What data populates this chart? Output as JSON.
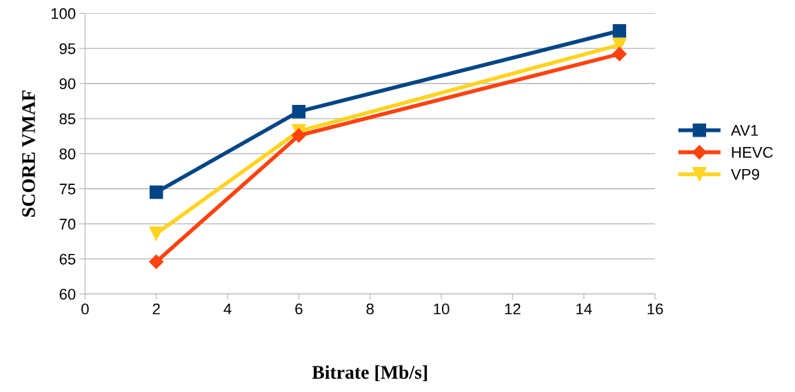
{
  "chart_data": {
    "type": "line",
    "xlabel": "Bitrate [Mb/s]",
    "ylabel": "SCORE VMAF",
    "x": [
      2,
      6,
      15
    ],
    "series": [
      {
        "name": "AV1",
        "color": "#004586",
        "values": [
          74.5,
          86.0,
          97.5
        ],
        "marker": "square"
      },
      {
        "name": "HEVC",
        "color": "#ff420e",
        "values": [
          64.6,
          82.6,
          94.2
        ],
        "marker": "diamond"
      },
      {
        "name": "VP9",
        "color": "#ffd320",
        "values": [
          68.6,
          83.2,
          95.5
        ],
        "marker": "triangle"
      }
    ],
    "xlim": [
      0,
      16
    ],
    "xticks": [
      0,
      2,
      4,
      6,
      8,
      10,
      12,
      14,
      16
    ],
    "ylim": [
      60,
      100
    ],
    "yticks": [
      60,
      65,
      70,
      75,
      80,
      85,
      90,
      95,
      100
    ],
    "grid": "y",
    "legend": "right",
    "line_style": "solid"
  }
}
